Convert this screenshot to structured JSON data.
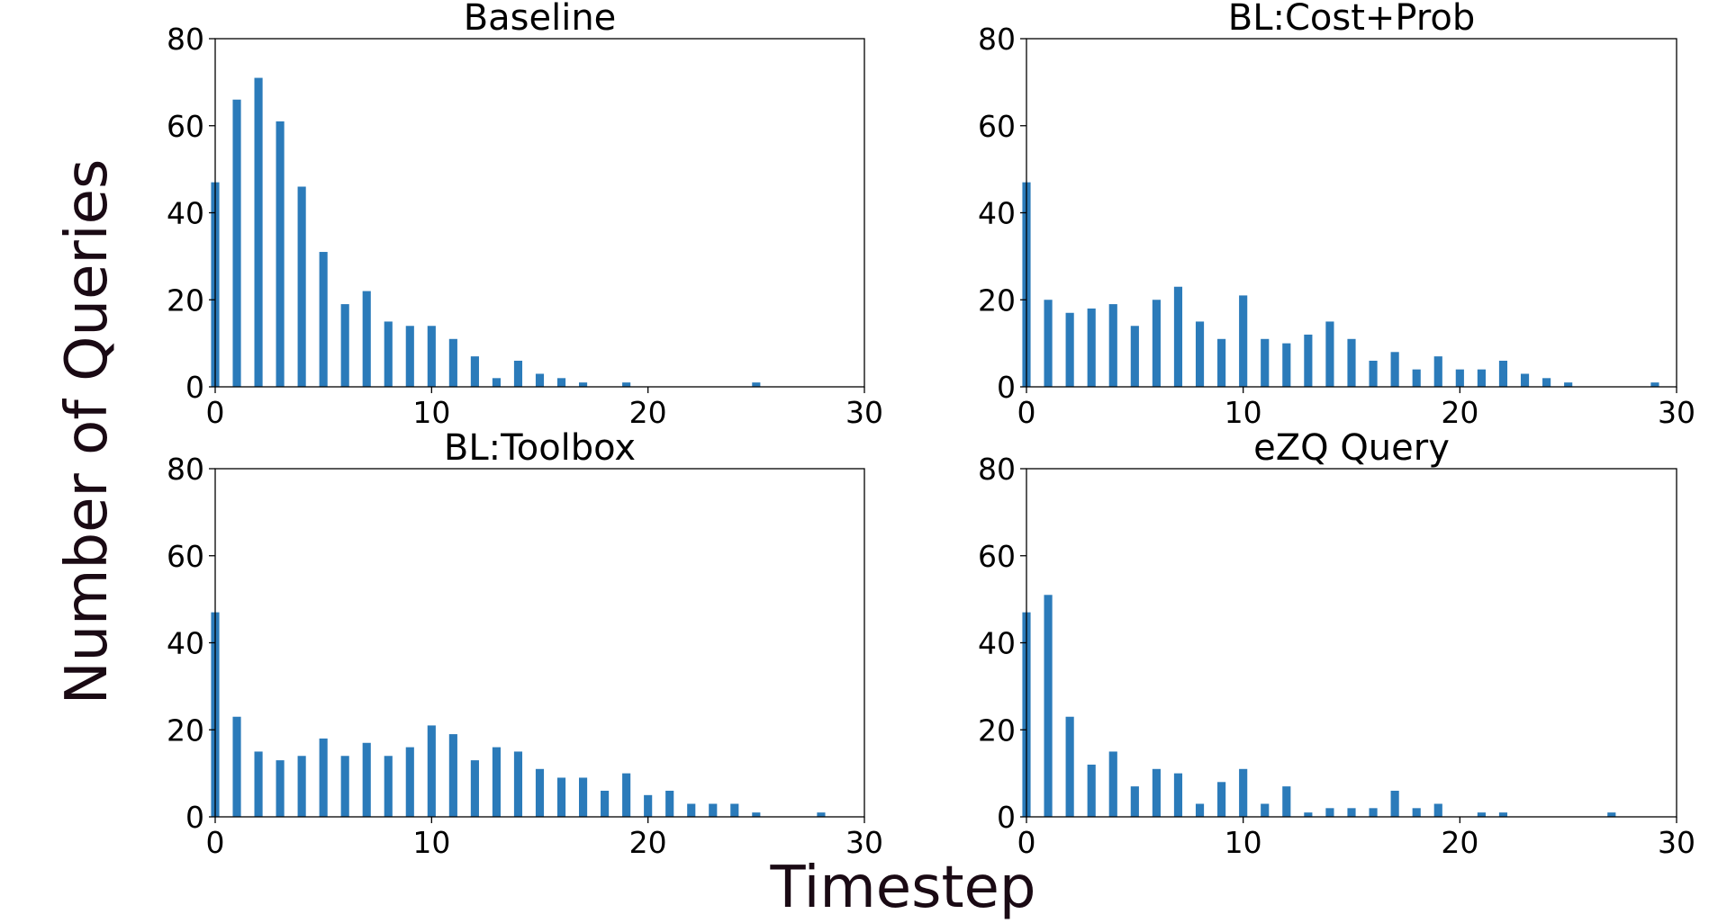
{
  "figure": {
    "xlabel": "Timestep",
    "ylabel": "Number of Queries"
  },
  "bar_color": "#2b7bba",
  "chart_data": [
    {
      "type": "bar",
      "title": "Baseline",
      "x": [
        0,
        1,
        2,
        3,
        4,
        5,
        6,
        7,
        8,
        9,
        10,
        11,
        12,
        13,
        14,
        15,
        16,
        17,
        19,
        25
      ],
      "values": [
        47,
        66,
        71,
        61,
        46,
        31,
        19,
        22,
        15,
        14,
        14,
        11,
        7,
        2,
        6,
        3,
        2,
        1,
        1,
        1
      ],
      "xlim": [
        0,
        30
      ],
      "ylim": [
        0,
        80
      ],
      "xticks": [
        0,
        10,
        20,
        30
      ],
      "yticks": [
        0,
        20,
        40,
        60,
        80
      ]
    },
    {
      "type": "bar",
      "title": "BL:Cost+Prob",
      "x": [
        0,
        1,
        2,
        3,
        4,
        5,
        6,
        7,
        8,
        9,
        10,
        11,
        12,
        13,
        14,
        15,
        16,
        17,
        18,
        19,
        20,
        21,
        22,
        23,
        24,
        25,
        29
      ],
      "values": [
        47,
        20,
        17,
        18,
        19,
        14,
        20,
        23,
        15,
        11,
        21,
        11,
        10,
        12,
        15,
        11,
        6,
        8,
        4,
        7,
        4,
        4,
        6,
        3,
        2,
        1,
        1
      ],
      "xlim": [
        0,
        30
      ],
      "ylim": [
        0,
        80
      ],
      "xticks": [
        0,
        10,
        20,
        30
      ],
      "yticks": [
        0,
        20,
        40,
        60,
        80
      ]
    },
    {
      "type": "bar",
      "title": "BL:Toolbox",
      "x": [
        0,
        1,
        2,
        3,
        4,
        5,
        6,
        7,
        8,
        9,
        10,
        11,
        12,
        13,
        14,
        15,
        16,
        17,
        18,
        19,
        20,
        21,
        22,
        23,
        24,
        25,
        28
      ],
      "values": [
        47,
        23,
        15,
        13,
        14,
        18,
        14,
        17,
        14,
        16,
        21,
        19,
        13,
        16,
        15,
        11,
        9,
        9,
        6,
        10,
        5,
        6,
        3,
        3,
        3,
        1,
        1
      ],
      "xlim": [
        0,
        30
      ],
      "ylim": [
        0,
        80
      ],
      "xticks": [
        0,
        10,
        20,
        30
      ],
      "yticks": [
        0,
        20,
        40,
        60,
        80
      ]
    },
    {
      "type": "bar",
      "title": "eZQ Query",
      "x": [
        0,
        1,
        2,
        3,
        4,
        5,
        6,
        7,
        8,
        9,
        10,
        11,
        12,
        13,
        14,
        15,
        16,
        17,
        18,
        19,
        21,
        22,
        27
      ],
      "values": [
        47,
        51,
        23,
        12,
        15,
        7,
        11,
        10,
        3,
        8,
        11,
        3,
        7,
        1,
        2,
        2,
        2,
        6,
        2,
        3,
        1,
        1,
        1
      ],
      "xlim": [
        0,
        30
      ],
      "ylim": [
        0,
        80
      ],
      "xticks": [
        0,
        10,
        20,
        30
      ],
      "yticks": [
        0,
        20,
        40,
        60,
        80
      ]
    }
  ]
}
